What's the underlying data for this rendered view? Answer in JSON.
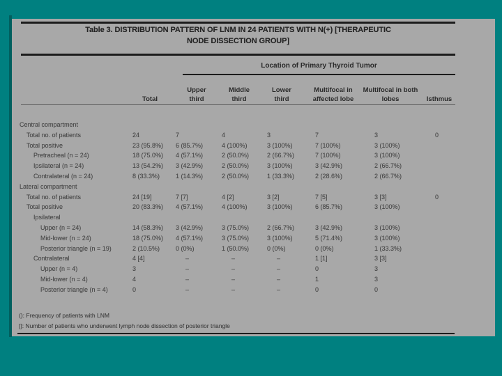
{
  "slide": {
    "title_line1": "Table 3. DISTRIBUTION PATTERN OF LNM IN 24 PATIENTS WITH N(+) [THERAPEUTIC",
    "title_line2": "NODE DISSECTION GROUP]",
    "colors": {
      "background": "#008080",
      "panel": "#a8a8a8",
      "rule": "#1c1c1c",
      "edge_shadow": "#015f5e"
    }
  },
  "table": {
    "span_header": "Location of Primary Thyroid Tumor",
    "columns": [
      "Total",
      "Upper third",
      "Middle third",
      "Lower third",
      "Multifocal in affected lobe",
      "Multifocal in both lobes",
      "Isthmus"
    ],
    "rows": [
      {
        "label": "Central compartment",
        "indent": 0,
        "values": [
          "",
          "",
          "",
          "",
          "",
          "",
          ""
        ]
      },
      {
        "label": "Total no. of patients",
        "indent": 1,
        "values": [
          "24",
          "7",
          "4",
          "3",
          "7",
          "3",
          "0"
        ]
      },
      {
        "label": "Total positive",
        "indent": 1,
        "values": [
          "23 (95.8%)",
          "6 (85.7%)",
          "4 (100%)",
          "3 (100%)",
          "7 (100%)",
          "3 (100%)",
          ""
        ]
      },
      {
        "label": "Pretracheal (n = 24)",
        "indent": 2,
        "values": [
          "18 (75.0%)",
          "4 (57.1%)",
          "2 (50.0%)",
          "2 (66.7%)",
          "7 (100%)",
          "3 (100%)",
          ""
        ]
      },
      {
        "label": "Ipsilateral (n = 24)",
        "indent": 2,
        "values": [
          "13 (54.2%)",
          "3 (42.9%)",
          "2 (50.0%)",
          "3 (100%)",
          "3 (42.9%)",
          "2 (66.7%)",
          ""
        ]
      },
      {
        "label": "Contralateral (n = 24)",
        "indent": 2,
        "values": [
          "8 (33.3%)",
          "1 (14.3%)",
          "2 (50.0%)",
          "1 (33.3%)",
          "2 (28.6%)",
          "2 (66.7%)",
          ""
        ]
      },
      {
        "label": "Lateral compartment",
        "indent": 0,
        "values": [
          "",
          "",
          "",
          "",
          "",
          "",
          ""
        ]
      },
      {
        "label": "Total no. of patients",
        "indent": 1,
        "values": [
          "24 [19]",
          "7 [7]",
          "4 [2]",
          "3 [2]",
          "7 [5]",
          "3 [3]",
          "0"
        ]
      },
      {
        "label": "Total positive",
        "indent": 1,
        "values": [
          "20 (83.3%)",
          "4 (57.1%)",
          "4 (100%)",
          "3 (100%)",
          "6 (85.7%)",
          "3 (100%)",
          ""
        ]
      },
      {
        "label": "Ipsilateral",
        "indent": 2,
        "values": [
          "",
          "",
          "",
          "",
          "",
          "",
          ""
        ]
      },
      {
        "label": "Upper (n = 24)",
        "indent": 3,
        "values": [
          "14 (58.3%)",
          "3 (42.9%)",
          "3 (75.0%)",
          "2 (66.7%)",
          "3 (42.9%)",
          "3 (100%)",
          ""
        ]
      },
      {
        "label": "Mid-lower (n = 24)",
        "indent": 3,
        "values": [
          "18 (75.0%)",
          "4 (57.1%)",
          "3 (75.0%)",
          "3 (100%)",
          "5 (71.4%)",
          "3 (100%)",
          ""
        ]
      },
      {
        "label": "Posterior triangle (n = 19)",
        "indent": 3,
        "values": [
          "2 (10.5%)",
          "0 (0%)",
          "1 (50.0%)",
          "0 (0%)",
          "0 (0%)",
          "1 (33.3%)",
          ""
        ]
      },
      {
        "label": "Contralateral",
        "indent": 2,
        "values": [
          "4 [4]",
          "–",
          "–",
          "–",
          "1 [1]",
          "3 [3]",
          ""
        ]
      },
      {
        "label": "Upper (n = 4)",
        "indent": 3,
        "values": [
          "3",
          "–",
          "–",
          "–",
          "0",
          "3",
          ""
        ]
      },
      {
        "label": "Mid-lower (n = 4)",
        "indent": 3,
        "values": [
          "4",
          "–",
          "–",
          "–",
          "1",
          "3",
          ""
        ]
      },
      {
        "label": "Posterior triangle (n = 4)",
        "indent": 3,
        "values": [
          "0",
          "–",
          "–",
          "–",
          "0",
          "0",
          ""
        ]
      }
    ],
    "footnotes": [
      "(): Frequency of patients with LNM",
      "[]: Number of patients who underwent lymph node dissection of posterior triangle"
    ]
  }
}
